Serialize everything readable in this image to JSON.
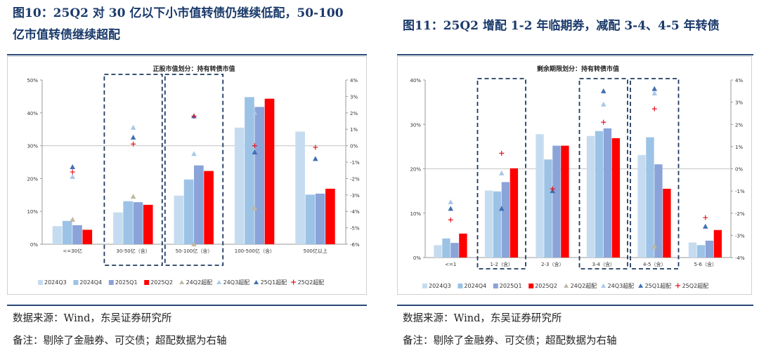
{
  "figures": [
    {
      "title": "图10：25Q2 对 30 亿以下小市值转债仍继续低配，50-100 亿市值转债继续超配",
      "source": "数据来源：Wind，东吴证券研究所",
      "note": "备注：剔除了金融券、可交债；超配数据为右轴"
    },
    {
      "title": "图11：25Q2 增配 1-2 年临期券，减配 3-4、4-5 年转债",
      "source": "数据来源：Wind，东吴证券研究所",
      "note": "备注：剔除了金融券、可交债；超配数据为右轴"
    }
  ],
  "colors": {
    "s2024Q3": "#c5dcf0",
    "s2024Q4": "#9cc3e6",
    "s2025Q1": "#8aa3d8",
    "s2025Q2": "#ff0000",
    "m24Q2": "#c0b8a0",
    "m24Q3": "#a9c8e8",
    "m25Q1": "#3f6fb5",
    "m25Q2": "#e8141e",
    "box": "#1f3b60"
  },
  "chart_data": [
    {
      "type": "bar",
      "title": "正股市值划分：持有转债市值",
      "categories": [
        "<=30亿",
        "30-50亿（含）",
        "50-100亿（含）",
        "100-500亿（含）",
        "500亿以上"
      ],
      "ylim": [
        0,
        50
      ],
      "y_ticks": [
        "0%",
        "10%",
        "20%",
        "30%",
        "40%",
        "50%"
      ],
      "y2lim": [
        -6,
        4
      ],
      "y2_ticks": [
        "-6%",
        "-5%",
        "-4%",
        "-3%",
        "-2%",
        "-1%",
        "0%",
        "1%",
        "2%",
        "3%",
        "4%"
      ],
      "highlight_categories": [
        1,
        2
      ],
      "series": [
        {
          "name": "2024Q3",
          "values": [
            5.5,
            9.7,
            14.8,
            35.5,
            34.3
          ]
        },
        {
          "name": "2024Q4",
          "values": [
            7.1,
            13.1,
            19.7,
            44.8,
            15.1
          ]
        },
        {
          "name": "2025Q1",
          "values": [
            5.8,
            12.8,
            24.0,
            41.8,
            15.4
          ]
        },
        {
          "name": "2025Q2",
          "values": [
            4.4,
            12.0,
            22.3,
            44.3,
            16.9
          ]
        }
      ],
      "markers": [
        {
          "name": "24Q2超配",
          "shape": "triangle",
          "values": [
            -4.5,
            -3.1,
            -6.0,
            -3.8,
            null
          ]
        },
        {
          "name": "24Q3超配",
          "shape": "triangle",
          "values": [
            -1.9,
            1.1,
            -0.5,
            2.0,
            null
          ]
        },
        {
          "name": "25Q1超配",
          "shape": "triangle",
          "values": [
            -1.3,
            0.5,
            1.8,
            -0.4,
            -0.8
          ]
        },
        {
          "name": "25Q2超配",
          "shape": "cross",
          "values": [
            -1.6,
            0.1,
            1.8,
            0.0,
            -0.1
          ]
        }
      ]
    },
    {
      "type": "bar",
      "title": "剩余期限划分：持有转债市值",
      "categories": [
        "<=1",
        "1-2（含）",
        "2-3（含）",
        "3-4（含）",
        "4-5（含）",
        "5-6（含）"
      ],
      "ylim": [
        0,
        40
      ],
      "y_ticks": [
        "0%",
        "10%",
        "20%",
        "30%",
        "40%"
      ],
      "y2lim": [
        -4,
        4
      ],
      "y2_ticks": [
        "-4%",
        "-3%",
        "-2%",
        "-1%",
        "0%",
        "1%",
        "2%",
        "3%",
        "4%"
      ],
      "highlight_categories": [
        1,
        3,
        4
      ],
      "series": [
        {
          "name": "2024Q3",
          "values": [
            2.8,
            15.1,
            27.8,
            27.4,
            23.1,
            3.4
          ]
        },
        {
          "name": "2024Q4",
          "values": [
            4.3,
            14.9,
            22.1,
            28.5,
            27.1,
            2.8
          ]
        },
        {
          "name": "2025Q1",
          "values": [
            3.3,
            17.0,
            25.2,
            29.1,
            21.0,
            3.8
          ]
        },
        {
          "name": "2025Q2",
          "values": [
            5.4,
            20.1,
            25.2,
            26.9,
            15.5,
            6.2
          ]
        }
      ],
      "markers": [
        {
          "name": "24Q2超配",
          "shape": "triangle",
          "values": [
            null,
            null,
            null,
            null,
            -3.5,
            null
          ]
        },
        {
          "name": "24Q3超配",
          "shape": "triangle",
          "values": [
            -1.5,
            -0.2,
            null,
            2.9,
            3.4,
            null
          ]
        },
        {
          "name": "25Q1超配",
          "shape": "triangle",
          "values": [
            -1.8,
            -1.8,
            -1.0,
            3.5,
            3.6,
            -2.6
          ]
        },
        {
          "name": "25Q2超配",
          "shape": "cross",
          "values": [
            -2.3,
            0.7,
            -0.9,
            2.1,
            2.7,
            -2.2
          ]
        }
      ]
    }
  ]
}
